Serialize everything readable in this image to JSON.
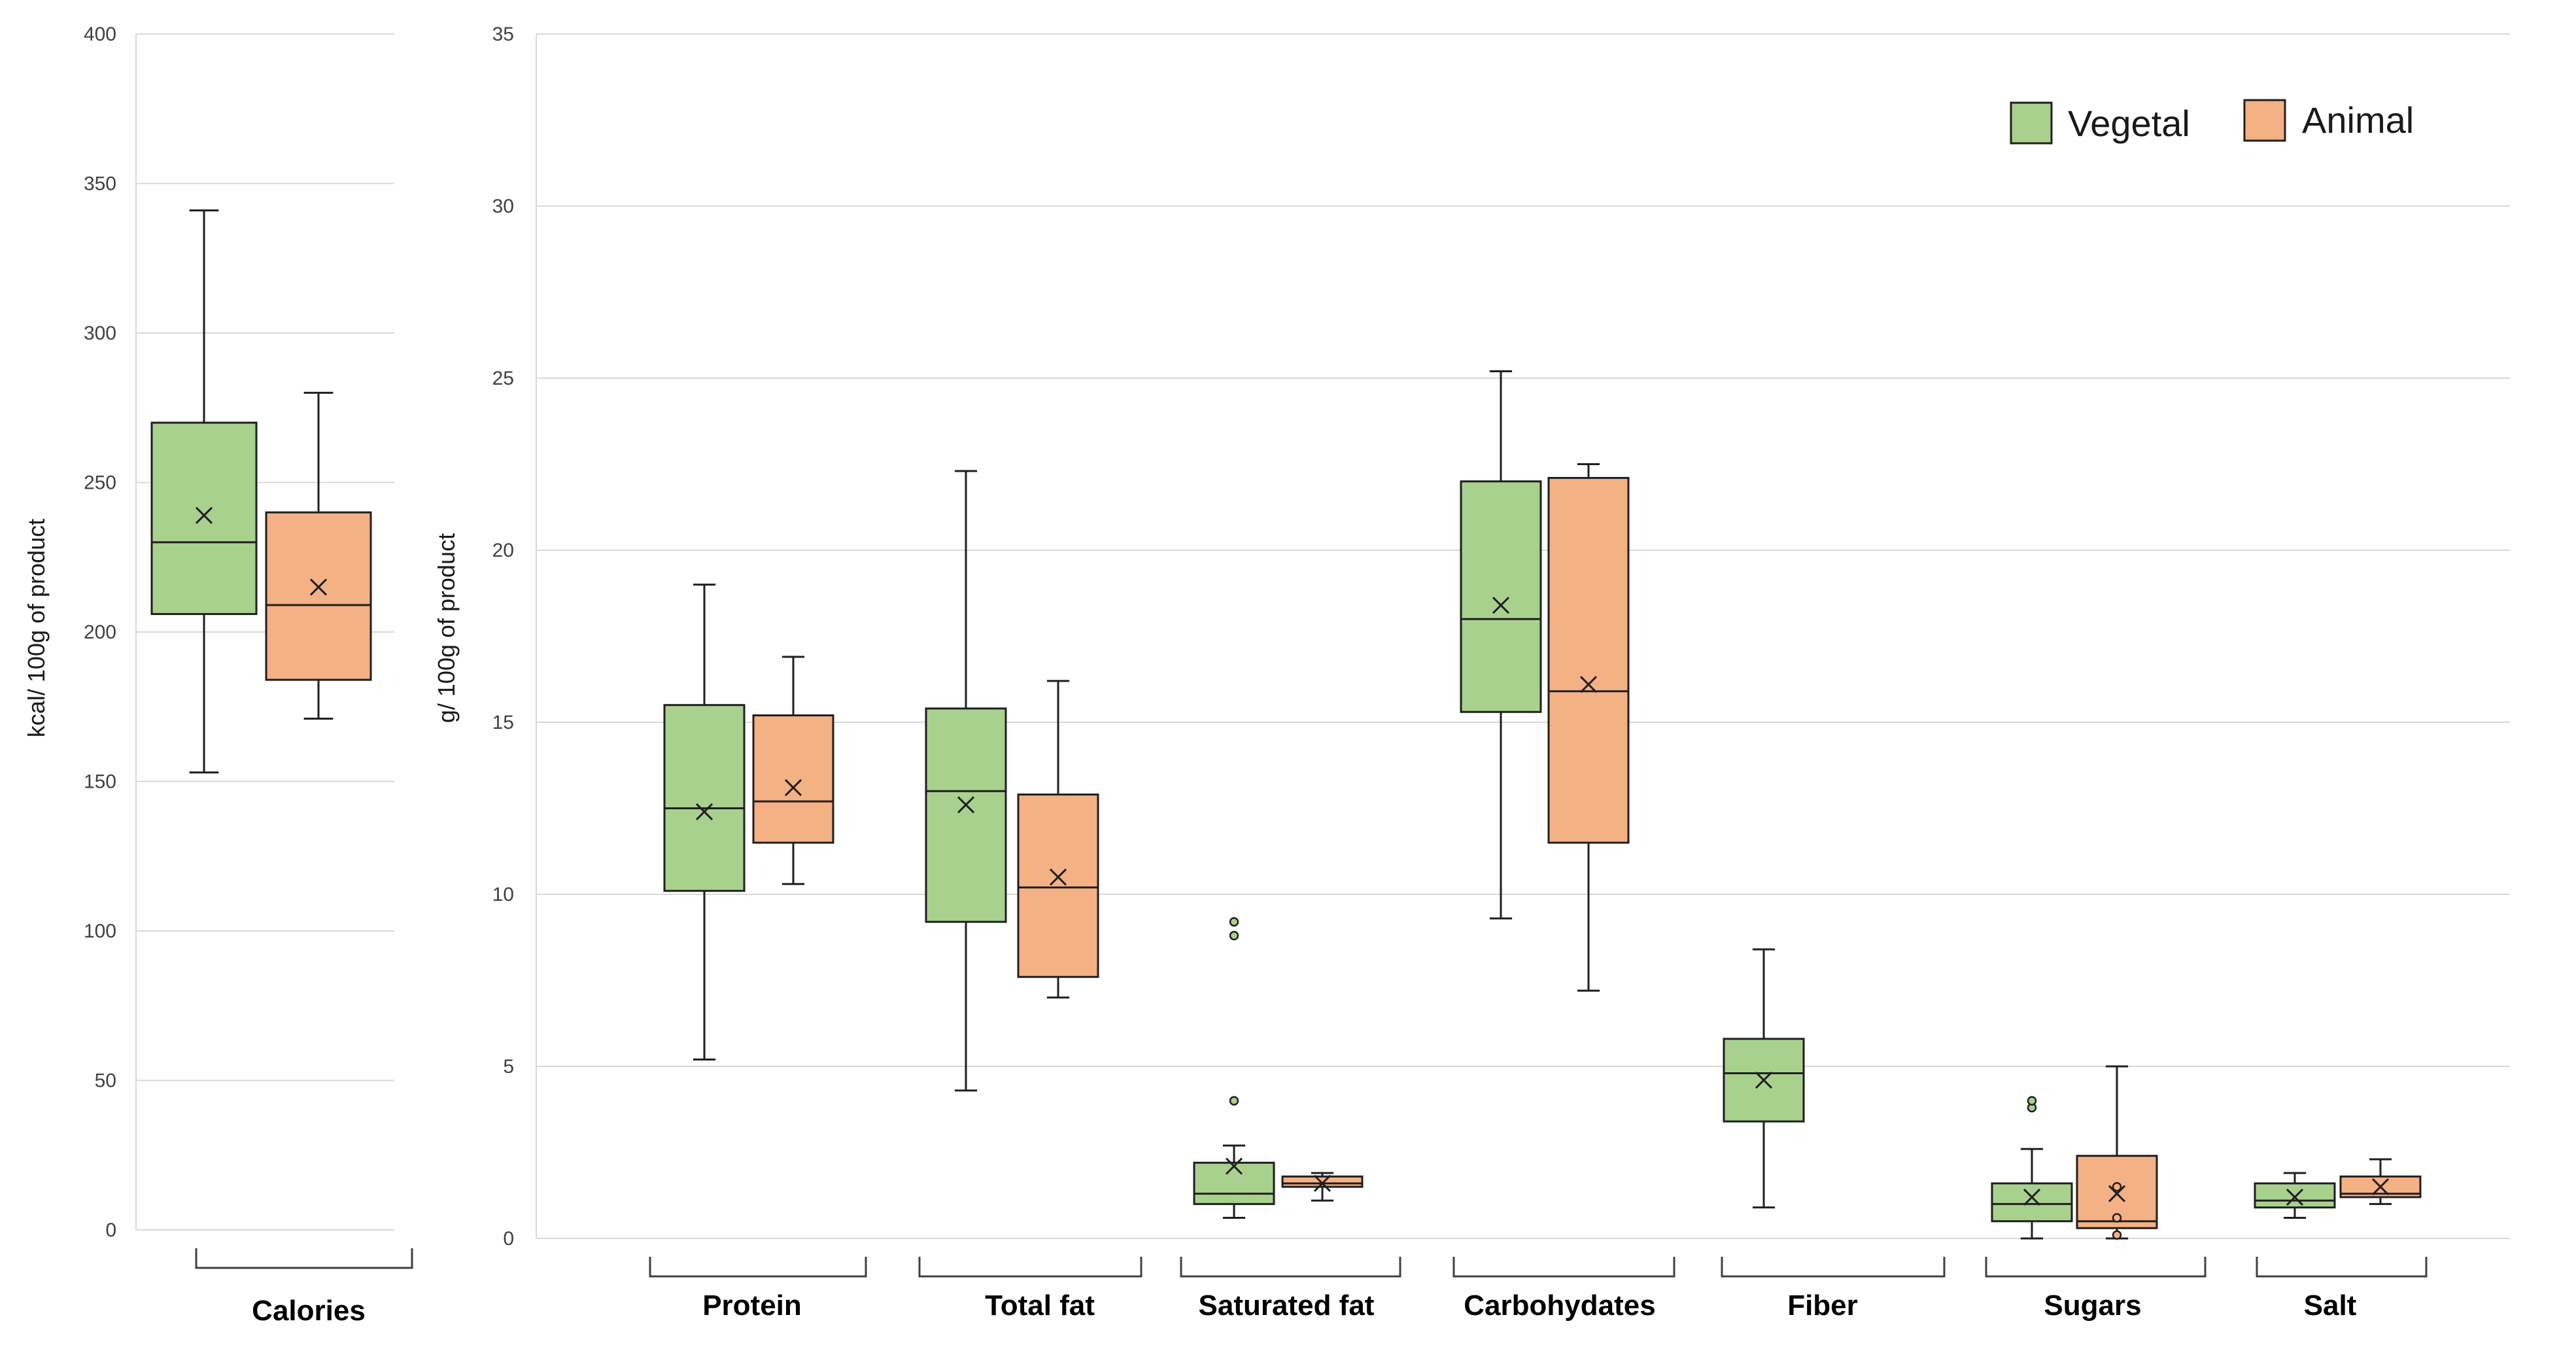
{
  "colors": {
    "vegetal_fill": "#a9d18e",
    "animal_fill": "#f4b183",
    "stroke": "#1f1f1f",
    "grid": "#d9d9d9",
    "tick_text": "#404040"
  },
  "legend": {
    "vegetal": "Vegetal",
    "animal": "Animal"
  },
  "chart_data": [
    {
      "type": "box",
      "title": "",
      "ylabel": "kcal/ 100g of product",
      "ylim": [
        0,
        400
      ],
      "yticks": [
        "0",
        "50",
        "100",
        "150",
        "200",
        "250",
        "300",
        "350",
        "400"
      ],
      "grid": true,
      "categories": [
        "Calories"
      ],
      "series": [
        {
          "name": "Vegetal",
          "boxes": [
            {
              "min": 153,
              "q1": 206,
              "median": 230,
              "q3": 270,
              "max": 341,
              "mean": 239,
              "outliers": []
            }
          ]
        },
        {
          "name": "Animal",
          "boxes": [
            {
              "min": 171,
              "q1": 184,
              "median": 209,
              "q3": 240,
              "max": 280,
              "mean": 215,
              "outliers": []
            }
          ]
        }
      ]
    },
    {
      "type": "box",
      "title": "",
      "ylabel": "g/ 100g of product",
      "ylim": [
        0,
        35
      ],
      "yticks": [
        "0",
        "5",
        "10",
        "15",
        "20",
        "25",
        "30",
        "35"
      ],
      "grid": true,
      "legend_position": "top-right",
      "categories": [
        "Protein",
        "Total fat",
        "Saturated fat",
        "Carbohydates",
        "Fiber",
        "Sugars",
        "Salt"
      ],
      "series": [
        {
          "name": "Vegetal",
          "boxes": [
            {
              "min": 5.2,
              "q1": 10.1,
              "median": 12.5,
              "q3": 15.5,
              "max": 19.0,
              "mean": 12.4,
              "outliers": []
            },
            {
              "min": 4.3,
              "q1": 9.2,
              "median": 13.0,
              "q3": 15.4,
              "max": 22.3,
              "mean": 12.6,
              "outliers": []
            },
            {
              "min": 0.6,
              "q1": 1.0,
              "median": 1.3,
              "q3": 2.2,
              "max": 2.7,
              "mean": 2.1,
              "outliers": [
                4.0,
                8.8,
                9.2
              ]
            },
            {
              "min": 9.3,
              "q1": 15.3,
              "median": 18.0,
              "q3": 22.0,
              "max": 25.2,
              "mean": 18.4,
              "outliers": []
            },
            {
              "min": 0.9,
              "q1": 3.4,
              "median": 4.8,
              "q3": 5.8,
              "max": 8.4,
              "mean": 4.6,
              "outliers": []
            },
            {
              "min": 0.0,
              "q1": 0.5,
              "median": 1.0,
              "q3": 1.6,
              "max": 2.6,
              "mean": 1.2,
              "outliers": [
                3.8,
                4.0
              ]
            },
            {
              "min": 0.6,
              "q1": 0.9,
              "median": 1.1,
              "q3": 1.6,
              "max": 1.9,
              "mean": 1.2,
              "outliers": []
            }
          ]
        },
        {
          "name": "Animal",
          "boxes": [
            {
              "min": 10.3,
              "q1": 11.5,
              "median": 12.7,
              "q3": 15.2,
              "max": 16.9,
              "mean": 13.1,
              "outliers": []
            },
            {
              "min": 7.0,
              "q1": 7.6,
              "median": 10.2,
              "q3": 12.9,
              "max": 16.2,
              "mean": 10.5,
              "outliers": []
            },
            {
              "min": 1.1,
              "q1": 1.5,
              "median": 1.6,
              "q3": 1.8,
              "max": 1.9,
              "mean": 1.6,
              "outliers": []
            },
            {
              "min": 7.2,
              "q1": 11.5,
              "median": 15.9,
              "q3": 22.1,
              "max": 22.5,
              "mean": 16.1,
              "outliers": []
            },
            null,
            {
              "min": 0.0,
              "q1": 0.3,
              "median": 0.5,
              "q3": 2.4,
              "max": 5.0,
              "mean": 1.3,
              "outliers": [
                0.1,
                0.6,
                1.5
              ]
            },
            {
              "min": 1.0,
              "q1": 1.2,
              "median": 1.3,
              "q3": 1.8,
              "max": 2.3,
              "mean": 1.5,
              "outliers": []
            }
          ]
        }
      ]
    }
  ]
}
